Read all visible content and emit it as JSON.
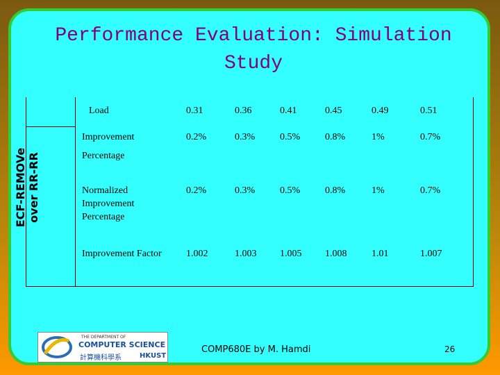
{
  "slide": {
    "title": "Performance Evaluation: Simulation Study",
    "side_label": [
      "ECF-REMOVe",
      "over RR-RR"
    ],
    "table": {
      "header": [
        "Load",
        "0.31",
        "0.36",
        "0.41",
        "0.45",
        "0.49",
        "0.51"
      ],
      "rows": [
        {
          "label": [
            "Improvement",
            "Percentage"
          ],
          "cells": [
            "0.2%",
            "0.3%",
            "0.5%",
            "0.8%",
            "1%",
            "0.7%"
          ]
        },
        {
          "label": [
            "Normalized",
            "Improvement",
            "Percentage"
          ],
          "cells": [
            "0.2%",
            "0.3%",
            "0.5%",
            "0.8%",
            "1%",
            "0.7%"
          ]
        },
        {
          "label": [
            "Improvement Factor"
          ],
          "cells": [
            "1.002",
            "1.003",
            "1.005",
            "1.008",
            "1.01",
            "1.007"
          ]
        }
      ]
    },
    "logo": {
      "top": "THE DEPARTMENT OF",
      "name": "COMPUTER SCIENCE",
      "chinese": "計算機科學系",
      "school": "HKUST"
    },
    "footer": "COMP680E by M. Hamdi",
    "page_number": "26"
  }
}
